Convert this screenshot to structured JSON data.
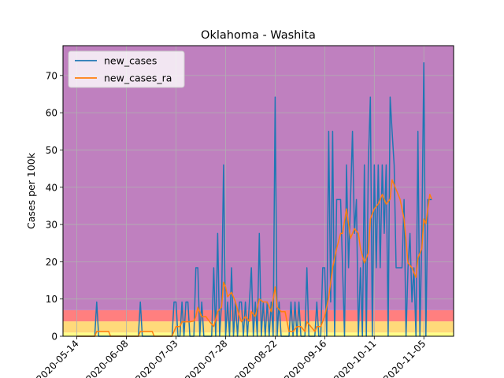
{
  "chart_data": {
    "type": "line",
    "title": "Oklahoma - Washita",
    "xlabel": "",
    "ylabel": "Cases per 100k",
    "x_ticks": [
      "2020-05-14",
      "2020-06-08",
      "2020-07-03",
      "2020-07-28",
      "2020-08-22",
      "2020-09-16",
      "2020-10-11",
      "2020-11-05"
    ],
    "xlim": [
      "2020-05-07",
      "2020-11-20"
    ],
    "ylim": [
      0,
      78
    ],
    "y_ticks": [
      0,
      10,
      20,
      30,
      40,
      50,
      60,
      70
    ],
    "grid": true,
    "legend": "upper-left",
    "background_bands": [
      {
        "from": 0,
        "to": 1,
        "color": "#ffff88"
      },
      {
        "from": 1,
        "to": 4,
        "color": "#ffd97a"
      },
      {
        "from": 4,
        "to": 7,
        "color": "#ff7f7f"
      },
      {
        "from": 7,
        "to": 78,
        "color": "#bf80bf"
      }
    ],
    "series": [
      {
        "name": "new_cases",
        "color": "#1f77b4",
        "points": [
          [
            "2020-05-14",
            0
          ],
          [
            "2020-05-23",
            0
          ],
          [
            "2020-05-24",
            9.2
          ],
          [
            "2020-05-25",
            0
          ],
          [
            "2020-06-14",
            0
          ],
          [
            "2020-06-15",
            9.2
          ],
          [
            "2020-06-16",
            0
          ],
          [
            "2020-07-01",
            0
          ],
          [
            "2020-07-02",
            9.2
          ],
          [
            "2020-07-03",
            9.2
          ],
          [
            "2020-07-04",
            0
          ],
          [
            "2020-07-05",
            0
          ],
          [
            "2020-07-06",
            9.2
          ],
          [
            "2020-07-07",
            0
          ],
          [
            "2020-07-08",
            9.2
          ],
          [
            "2020-07-09",
            9.2
          ],
          [
            "2020-07-10",
            0
          ],
          [
            "2020-07-11",
            0
          ],
          [
            "2020-07-12",
            0
          ],
          [
            "2020-07-13",
            18.4
          ],
          [
            "2020-07-14",
            18.4
          ],
          [
            "2020-07-15",
            0
          ],
          [
            "2020-07-16",
            9.2
          ],
          [
            "2020-07-17",
            0
          ],
          [
            "2020-07-18",
            0
          ],
          [
            "2020-07-19",
            0
          ],
          [
            "2020-07-20",
            0
          ],
          [
            "2020-07-21",
            0
          ],
          [
            "2020-07-22",
            18.4
          ],
          [
            "2020-07-23",
            0
          ],
          [
            "2020-07-24",
            27.6
          ],
          [
            "2020-07-25",
            0
          ],
          [
            "2020-07-26",
            9.2
          ],
          [
            "2020-07-27",
            46
          ],
          [
            "2020-07-28",
            0
          ],
          [
            "2020-07-29",
            9.2
          ],
          [
            "2020-07-30",
            0
          ],
          [
            "2020-07-31",
            18.4
          ],
          [
            "2020-08-01",
            0
          ],
          [
            "2020-08-02",
            9.2
          ],
          [
            "2020-08-03",
            0
          ],
          [
            "2020-08-04",
            9.2
          ],
          [
            "2020-08-05",
            9.2
          ],
          [
            "2020-08-06",
            0
          ],
          [
            "2020-08-07",
            9.2
          ],
          [
            "2020-08-08",
            0
          ],
          [
            "2020-08-09",
            9.2
          ],
          [
            "2020-08-10",
            18.4
          ],
          [
            "2020-08-11",
            0
          ],
          [
            "2020-08-12",
            9.2
          ],
          [
            "2020-08-13",
            0
          ],
          [
            "2020-08-14",
            27.6
          ],
          [
            "2020-08-15",
            0
          ],
          [
            "2020-08-16",
            9.2
          ],
          [
            "2020-08-17",
            0
          ],
          [
            "2020-08-18",
            9.2
          ],
          [
            "2020-08-19",
            0
          ],
          [
            "2020-08-20",
            9.2
          ],
          [
            "2020-08-21",
            0
          ],
          [
            "2020-08-22",
            64.2
          ],
          [
            "2020-08-23",
            0
          ],
          [
            "2020-08-24",
            9.2
          ],
          [
            "2020-08-25",
            0
          ],
          [
            "2020-08-26",
            0
          ],
          [
            "2020-08-27",
            0
          ],
          [
            "2020-08-28",
            0
          ],
          [
            "2020-08-29",
            0
          ],
          [
            "2020-08-30",
            9.2
          ],
          [
            "2020-08-31",
            0
          ],
          [
            "2020-09-01",
            9.2
          ],
          [
            "2020-09-02",
            0
          ],
          [
            "2020-09-03",
            9.2
          ],
          [
            "2020-09-04",
            0
          ],
          [
            "2020-09-05",
            0
          ],
          [
            "2020-09-06",
            0
          ],
          [
            "2020-09-07",
            18.4
          ],
          [
            "2020-09-08",
            0
          ],
          [
            "2020-09-09",
            0
          ],
          [
            "2020-09-10",
            0
          ],
          [
            "2020-09-11",
            0
          ],
          [
            "2020-09-12",
            9.2
          ],
          [
            "2020-09-13",
            0
          ],
          [
            "2020-09-14",
            0
          ],
          [
            "2020-09-15",
            18.4
          ],
          [
            "2020-09-16",
            18.4
          ],
          [
            "2020-09-17",
            0
          ],
          [
            "2020-09-18",
            55
          ],
          [
            "2020-09-19",
            9.2
          ],
          [
            "2020-09-20",
            55
          ],
          [
            "2020-09-21",
            0
          ],
          [
            "2020-09-22",
            36.7
          ],
          [
            "2020-09-23",
            36.7
          ],
          [
            "2020-09-24",
            36.7
          ],
          [
            "2020-09-25",
            18.4
          ],
          [
            "2020-09-26",
            0
          ],
          [
            "2020-09-27",
            46
          ],
          [
            "2020-09-28",
            18.4
          ],
          [
            "2020-09-29",
            36.7
          ],
          [
            "2020-09-30",
            55
          ],
          [
            "2020-10-01",
            27.6
          ],
          [
            "2020-10-02",
            36.7
          ],
          [
            "2020-10-03",
            0
          ],
          [
            "2020-10-04",
            18.4
          ],
          [
            "2020-10-05",
            0
          ],
          [
            "2020-10-06",
            46
          ],
          [
            "2020-10-07",
            0
          ],
          [
            "2020-10-08",
            46
          ],
          [
            "2020-10-09",
            64.2
          ],
          [
            "2020-10-10",
            0
          ],
          [
            "2020-10-11",
            46
          ],
          [
            "2020-10-12",
            18.4
          ],
          [
            "2020-10-13",
            46
          ],
          [
            "2020-10-14",
            18.4
          ],
          [
            "2020-10-15",
            46
          ],
          [
            "2020-10-16",
            27.6
          ],
          [
            "2020-10-17",
            46
          ],
          [
            "2020-10-18",
            0
          ],
          [
            "2020-10-19",
            64.2
          ],
          [
            "2020-10-20",
            55
          ],
          [
            "2020-10-21",
            46
          ],
          [
            "2020-10-22",
            18.4
          ],
          [
            "2020-10-23",
            18.4
          ],
          [
            "2020-10-24",
            18.4
          ],
          [
            "2020-10-25",
            18.4
          ],
          [
            "2020-10-26",
            36.7
          ],
          [
            "2020-10-27",
            0
          ],
          [
            "2020-10-28",
            18.4
          ],
          [
            "2020-10-29",
            27.6
          ],
          [
            "2020-10-30",
            9.2
          ],
          [
            "2020-10-31",
            18.4
          ],
          [
            "2020-11-01",
            0
          ],
          [
            "2020-11-02",
            55
          ],
          [
            "2020-11-03",
            0
          ],
          [
            "2020-11-04",
            27.6
          ],
          [
            "2020-11-05",
            73.4
          ],
          [
            "2020-11-06",
            0
          ],
          [
            "2020-11-07",
            36.7
          ],
          [
            "2020-11-08",
            36.7
          ],
          [
            "2020-11-09",
            36.7
          ]
        ]
      },
      {
        "name": "new_cases_ra",
        "color": "#ff7f0e",
        "points": [
          [
            "2020-05-14",
            0
          ],
          [
            "2020-05-23",
            0
          ],
          [
            "2020-05-24",
            1.3
          ],
          [
            "2020-05-30",
            1.3
          ],
          [
            "2020-05-31",
            0
          ],
          [
            "2020-06-14",
            0
          ],
          [
            "2020-06-15",
            1.3
          ],
          [
            "2020-06-21",
            1.3
          ],
          [
            "2020-06-22",
            0
          ],
          [
            "2020-07-01",
            0
          ],
          [
            "2020-07-02",
            1.3
          ],
          [
            "2020-07-03",
            2.6
          ],
          [
            "2020-07-05",
            2.6
          ],
          [
            "2020-07-06",
            3.9
          ],
          [
            "2020-07-08",
            3.9
          ],
          [
            "2020-07-10",
            3.9
          ],
          [
            "2020-07-12",
            4.1
          ],
          [
            "2020-07-13",
            5.3
          ],
          [
            "2020-07-14",
            7.8
          ],
          [
            "2020-07-16",
            5.2
          ],
          [
            "2020-07-18",
            5.3
          ],
          [
            "2020-07-20",
            3.9
          ],
          [
            "2020-07-22",
            2.6
          ],
          [
            "2020-07-24",
            6.6
          ],
          [
            "2020-07-26",
            7.9
          ],
          [
            "2020-07-27",
            14.5
          ],
          [
            "2020-07-28",
            13.2
          ],
          [
            "2020-07-29",
            10.6
          ],
          [
            "2020-07-31",
            11.8
          ],
          [
            "2020-08-02",
            9.2
          ],
          [
            "2020-08-04",
            5.3
          ],
          [
            "2020-08-05",
            3.9
          ],
          [
            "2020-08-07",
            5.3
          ],
          [
            "2020-08-09",
            4
          ],
          [
            "2020-08-10",
            6.6
          ],
          [
            "2020-08-12",
            5.3
          ],
          [
            "2020-08-14",
            10
          ],
          [
            "2020-08-16",
            9.2
          ],
          [
            "2020-08-18",
            9.2
          ],
          [
            "2020-08-20",
            6.6
          ],
          [
            "2020-08-22",
            13.3
          ],
          [
            "2020-08-23",
            7.8
          ],
          [
            "2020-08-25",
            6.6
          ],
          [
            "2020-08-27",
            6.6
          ],
          [
            "2020-08-29",
            1.3
          ],
          [
            "2020-08-31",
            1.3
          ],
          [
            "2020-09-02",
            2.6
          ],
          [
            "2020-09-04",
            2.6
          ],
          [
            "2020-09-06",
            1.3
          ],
          [
            "2020-09-07",
            3.9
          ],
          [
            "2020-09-09",
            2.6
          ],
          [
            "2020-09-11",
            1.3
          ],
          [
            "2020-09-12",
            2.6
          ],
          [
            "2020-09-14",
            2.6
          ],
          [
            "2020-09-15",
            4
          ],
          [
            "2020-09-16",
            5.3
          ],
          [
            "2020-09-18",
            10.5
          ],
          [
            "2020-09-20",
            18.4
          ],
          [
            "2020-09-22",
            23.6
          ],
          [
            "2020-09-24",
            27.6
          ],
          [
            "2020-09-25",
            27.6
          ],
          [
            "2020-09-27",
            34.2
          ],
          [
            "2020-09-29",
            26.3
          ],
          [
            "2020-10-01",
            28.9
          ],
          [
            "2020-10-03",
            27.6
          ],
          [
            "2020-10-04",
            23.6
          ],
          [
            "2020-10-06",
            19.7
          ],
          [
            "2020-10-08",
            22.3
          ],
          [
            "2020-10-09",
            31.5
          ],
          [
            "2020-10-11",
            34.2
          ],
          [
            "2020-10-13",
            35.5
          ],
          [
            "2020-10-15",
            38.1
          ],
          [
            "2020-10-17",
            35.5
          ],
          [
            "2020-10-19",
            36.8
          ],
          [
            "2020-10-20",
            42
          ],
          [
            "2020-10-22",
            39.4
          ],
          [
            "2020-10-24",
            36.8
          ],
          [
            "2020-10-26",
            31.5
          ],
          [
            "2020-10-28",
            19.7
          ],
          [
            "2020-10-30",
            18.4
          ],
          [
            "2020-11-01",
            15.8
          ],
          [
            "2020-11-02",
            21
          ],
          [
            "2020-11-04",
            23.6
          ],
          [
            "2020-11-05",
            31.5
          ],
          [
            "2020-11-06",
            30.2
          ],
          [
            "2020-11-07",
            34.2
          ],
          [
            "2020-11-08",
            38.1
          ],
          [
            "2020-11-09",
            36.8
          ]
        ]
      }
    ]
  }
}
